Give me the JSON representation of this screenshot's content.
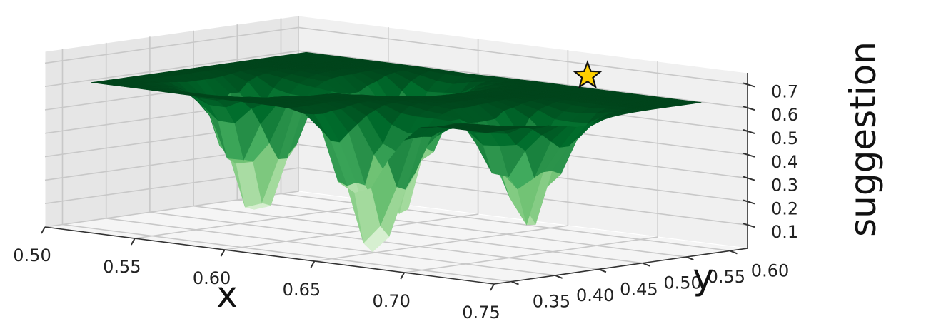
{
  "chart_data": {
    "type": "surface3d",
    "xlabel": "x",
    "ylabel": "y",
    "zlabel": "suggestion",
    "xlim": [
      0.5,
      0.75
    ],
    "ylim": [
      0.33,
      0.62
    ],
    "zlim": [
      0.0,
      0.75
    ],
    "xticks": [
      "0.50",
      "0.55",
      "0.60",
      "0.65",
      "0.70",
      "0.75"
    ],
    "yticks": [
      "0.35",
      "0.40",
      "0.45",
      "0.50",
      "0.55",
      "0.60"
    ],
    "zticks": [
      "0.1",
      "0.2",
      "0.3",
      "0.4",
      "0.5",
      "0.6",
      "0.7"
    ],
    "colormap": "Greens",
    "plateau_value": 0.62,
    "dips": [
      {
        "x": 0.565,
        "y": 0.44,
        "min": 0.02
      },
      {
        "x": 0.605,
        "y": 0.52,
        "min": 0.05
      },
      {
        "x": 0.665,
        "y": 0.37,
        "min": 0.0
      },
      {
        "x": 0.705,
        "y": 0.46,
        "min": 0.12
      }
    ],
    "marker": {
      "x": 0.695,
      "y": 0.55,
      "z": 0.72,
      "symbol": "star",
      "color": "#ffd000"
    },
    "colors": {
      "surface_dark": "#00441b",
      "surface_light": "#e5f5e0",
      "pane": "#f2f2f2",
      "grid": "#c8c8c8"
    }
  }
}
